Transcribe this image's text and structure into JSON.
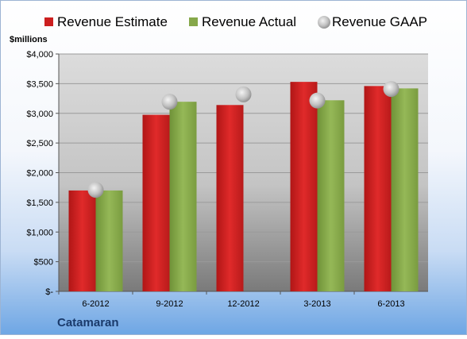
{
  "chart_data": {
    "type": "bar",
    "categories": [
      "6-2012",
      "9-2012",
      "12-2012",
      "3-2013",
      "6-2013"
    ],
    "series": [
      {
        "name": "Revenue Estimate",
        "kind": "bar",
        "color": "#cc1f1f",
        "values": [
          1700,
          2975,
          3140,
          3530,
          3460
        ]
      },
      {
        "name": "Revenue Actual",
        "kind": "bar",
        "color": "#86a84a",
        "values": [
          1700,
          3195,
          null,
          3220,
          3420
        ]
      },
      {
        "name": "Revenue GAAP",
        "kind": "marker",
        "color": "#c9c9c9",
        "values": [
          1710,
          3195,
          3320,
          3215,
          3410
        ]
      }
    ],
    "ylabel": "$millions",
    "ylim": [
      0,
      4000
    ],
    "yticks": [
      0,
      500,
      1000,
      1500,
      2000,
      2500,
      3000,
      3500,
      4000
    ],
    "ytick_labels": [
      "$-",
      "$500",
      "$1,000",
      "$1,500",
      "$2,000",
      "$2,500",
      "$3,000",
      "$3,500",
      "$4,000"
    ],
    "grid": true,
    "legend": "top",
    "company": "Catamaran"
  }
}
